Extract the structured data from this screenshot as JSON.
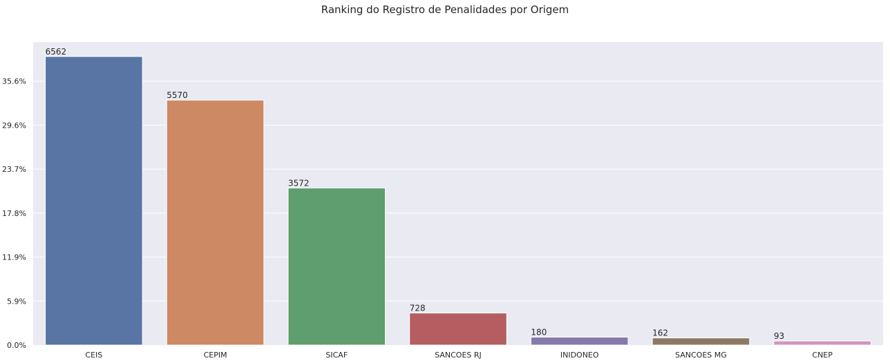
{
  "chart_data": {
    "type": "bar",
    "title": "Ranking do Registro de Penalidades por Origem",
    "xlabel": "",
    "ylabel": "",
    "categories": [
      "CEIS",
      "CEPIM",
      "SICAF",
      "SANCOES RJ",
      "INIDONEO",
      "SANCOES MG",
      "CNEP"
    ],
    "values": [
      6562,
      5570,
      3572,
      728,
      180,
      162,
      93
    ],
    "data_labels": [
      "6562",
      "5570",
      "3572",
      "728",
      "180",
      "162",
      "93"
    ],
    "ytick_labels": [
      "0.0%",
      "5.9%",
      "11.9%",
      "17.8%",
      "23.7%",
      "29.6%",
      "35.6%"
    ],
    "ytick_values": [
      0,
      1000,
      2000,
      3000,
      4000,
      5000,
      6000
    ],
    "ylim": [
      0,
      6890
    ],
    "colors": [
      "#5975a4",
      "#cc8963",
      "#5f9e6e",
      "#b55d60",
      "#857aab",
      "#8d7866",
      "#d095bf"
    ],
    "background": "#eaeaf2",
    "grid": true,
    "legend": "none"
  }
}
